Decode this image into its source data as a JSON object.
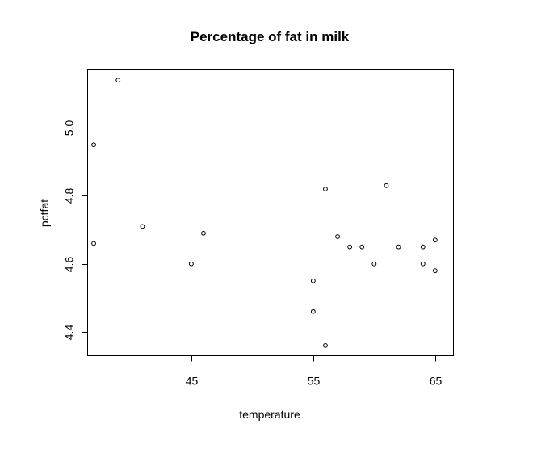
{
  "chart_data": {
    "type": "scatter",
    "title": "Percentage of fat in milk",
    "xlabel": "temperature",
    "ylabel": "pctfat",
    "xlim": [
      36.5,
      66.5
    ],
    "ylim": [
      4.33,
      5.17
    ],
    "xticks": [
      45,
      55,
      65
    ],
    "xtick_labels": [
      "45",
      "55",
      "65"
    ],
    "yticks": [
      4.4,
      4.6,
      4.8,
      5.0
    ],
    "ytick_labels": [
      "4.4",
      "4.6",
      "4.8",
      "5.0"
    ],
    "grid": false,
    "legend": "none",
    "x": [
      37,
      37,
      39,
      41,
      45,
      46,
      55,
      55,
      56,
      56,
      57,
      58,
      59,
      60,
      61,
      62,
      64,
      64,
      65,
      65
    ],
    "y": [
      4.95,
      4.66,
      5.14,
      4.71,
      4.6,
      4.69,
      4.55,
      4.46,
      4.82,
      4.36,
      4.68,
      4.65,
      4.65,
      4.6,
      4.83,
      4.65,
      4.65,
      4.6,
      4.67,
      4.58
    ]
  }
}
